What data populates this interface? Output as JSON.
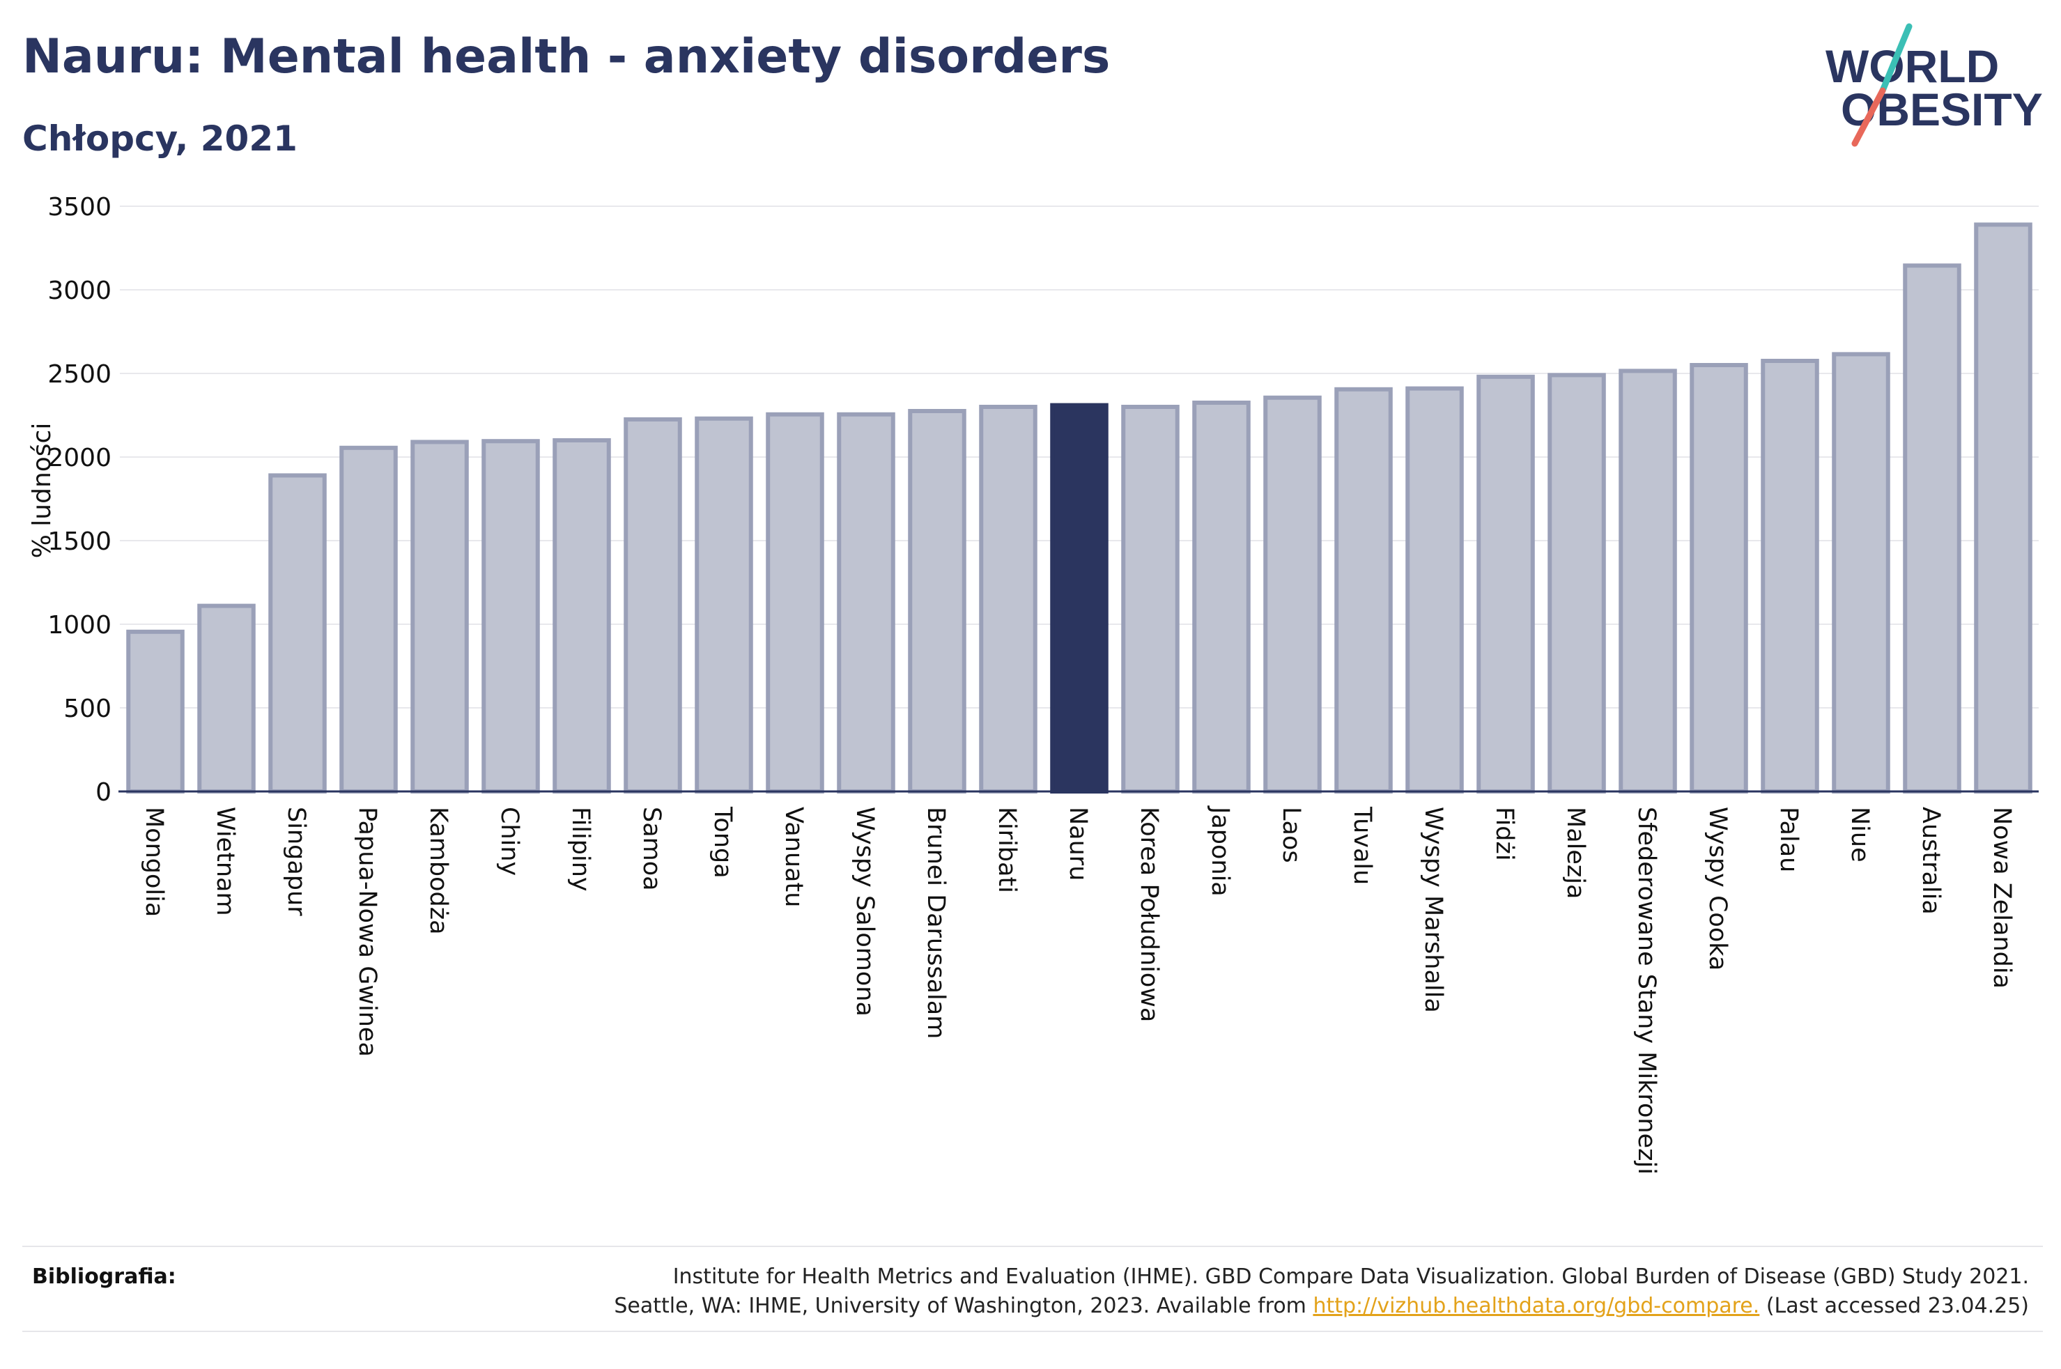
{
  "header": {
    "title": "Nauru: Mental health - anxiety disorders",
    "subtitle": "Chłopcy, 2021"
  },
  "logo": {
    "line1": "WORLD",
    "line2": "OBESITY",
    "colors": {
      "text": "#2a3560",
      "slash_top": "#3bbfb5",
      "slash_bottom": "#e8685a"
    }
  },
  "chart_data": {
    "type": "bar",
    "ylabel": "% ludności",
    "ylim": [
      0,
      3500
    ],
    "yticks": [
      0,
      500,
      1000,
      1500,
      2000,
      2500,
      3000,
      3500
    ],
    "grid": true,
    "highlight": "Nauru",
    "colors": {
      "bar": "#bfc3d1",
      "bar_edge": "#9aa0b8",
      "highlight": "#2b355f"
    },
    "categories": [
      "Mongolia",
      "Wietnam",
      "Singapur",
      "Papua-Nowa Gwinea",
      "Kambodża",
      "Chiny",
      "Filipiny",
      "Samoa",
      "Tonga",
      "Vanuatu",
      "Wyspy Salomona",
      "Brunei Darussalam",
      "Kiribati",
      "Nauru",
      "Korea Południowa",
      "Japonia",
      "Laos",
      "Tuvalu",
      "Wyspy Marshalla",
      "Fidżi",
      "Malezja",
      "Sfederowane Stany Mikronezji",
      "Wyspy Cooka",
      "Palau",
      "Niue",
      "Australia",
      "Nowa Zelandia"
    ],
    "values": [
      955,
      1110,
      1890,
      2055,
      2090,
      2095,
      2100,
      2225,
      2230,
      2255,
      2255,
      2275,
      2300,
      2310,
      2300,
      2325,
      2355,
      2405,
      2410,
      2480,
      2490,
      2515,
      2550,
      2575,
      2615,
      3145,
      3390
    ]
  },
  "footer": {
    "label": "Bibliografia:",
    "line1": "Institute for Health Metrics and Evaluation (IHME). GBD Compare Data Visualization. Global Burden of Disease (GBD) Study 2021.",
    "line2_pre": "Seattle, WA: IHME, University of Washington, 2023. Available from ",
    "link": "http://vizhub.healthdata.org/gbd-compare.",
    "line2_post": " (Last accessed 23.04.25)"
  }
}
